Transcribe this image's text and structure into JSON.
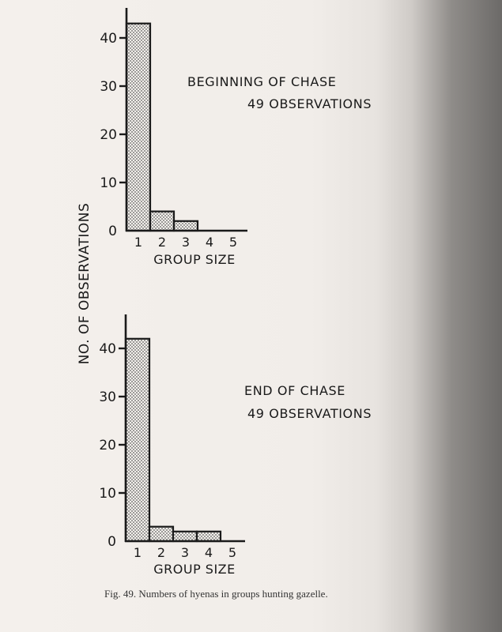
{
  "figure": {
    "shared_ylabel": "NO. OF OBSERVATIONS",
    "caption": "Fig. 49.  Numbers of hyenas in groups hunting gazelle."
  },
  "chart_data": [
    {
      "type": "bar",
      "title": "BEGINNING  OF  CHASE",
      "subtitle": "49  OBSERVATIONS",
      "xlabel": "GROUP  SIZE",
      "ylabel": "NO. OF OBSERVATIONS",
      "categories": [
        "1",
        "2",
        "3",
        "4",
        "5"
      ],
      "values": [
        43,
        4,
        2,
        0,
        0
      ],
      "yticks": [
        0,
        10,
        20,
        30,
        40
      ],
      "ylim": [
        0,
        47
      ],
      "bar_color": "#9a9a9a",
      "grid": false
    },
    {
      "type": "bar",
      "title": "END  OF  CHASE",
      "subtitle": "49  OBSERVATIONS",
      "xlabel": "GROUP  SIZE",
      "ylabel": "NO. OF OBSERVATIONS",
      "categories": [
        "1",
        "2",
        "3",
        "4",
        "5"
      ],
      "values": [
        42,
        3,
        2,
        2,
        0
      ],
      "yticks": [
        0,
        10,
        20,
        30,
        40
      ],
      "ylim": [
        0,
        47
      ],
      "bar_color": "#9a9a9a",
      "grid": false
    }
  ]
}
